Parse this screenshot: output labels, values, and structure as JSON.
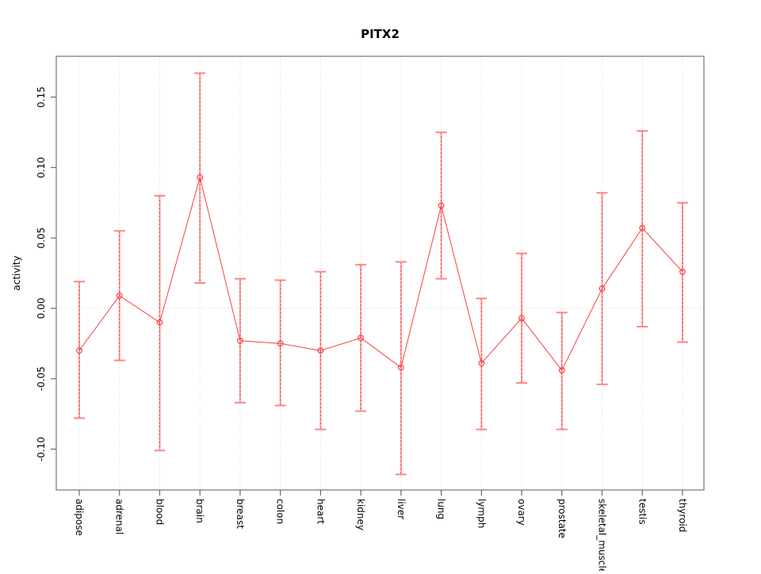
{
  "chart_data": {
    "type": "line",
    "error_bars": true,
    "title": "PITX2",
    "xlabel": "",
    "ylabel": "activity",
    "categories": [
      "adipose",
      "adrenal",
      "blood",
      "brain",
      "breast",
      "colon",
      "heart",
      "kidney",
      "liver",
      "lung",
      "lymph",
      "ovary",
      "prostate",
      "skeletal_muscle",
      "testis",
      "thyroid"
    ],
    "series": [
      {
        "name": "PITX2 activity",
        "values": [
          -0.03,
          0.009,
          -0.01,
          0.093,
          -0.023,
          -0.025,
          -0.03,
          -0.021,
          -0.042,
          0.073,
          -0.039,
          -0.007,
          -0.044,
          0.014,
          0.057,
          0.026
        ],
        "lower": [
          -0.078,
          -0.037,
          -0.101,
          0.018,
          -0.067,
          -0.069,
          -0.086,
          -0.073,
          -0.118,
          0.021,
          -0.086,
          -0.053,
          -0.086,
          -0.054,
          -0.013,
          -0.024
        ],
        "upper": [
          0.019,
          0.055,
          0.08,
          0.167,
          0.021,
          0.02,
          0.026,
          0.031,
          0.033,
          0.125,
          0.007,
          0.039,
          -0.003,
          0.082,
          0.126,
          0.075
        ]
      }
    ],
    "ytick_values": [
      0.15,
      0.1,
      0.05,
      0.0,
      -0.05,
      -0.1
    ],
    "ytick_labels": [
      "0.15",
      "0.10",
      "0.05",
      "0.00",
      "-0.05",
      "-0.10"
    ],
    "ylim": [
      -0.129,
      0.179
    ],
    "grid": "dotted vertical gridline at each category; dotted horizontal gridline at y=0 only",
    "legend": "none",
    "colors": {
      "point": "#f84040",
      "series_line": "#f84040",
      "error_bar": "#ffa3a3",
      "error_bar_cap": "#ff8585",
      "error_bar_dotted_overlay": "#f63c3c",
      "gridline": "#d7d7d7",
      "box": "#808080",
      "tick": "#666666",
      "text": "#000000"
    }
  }
}
